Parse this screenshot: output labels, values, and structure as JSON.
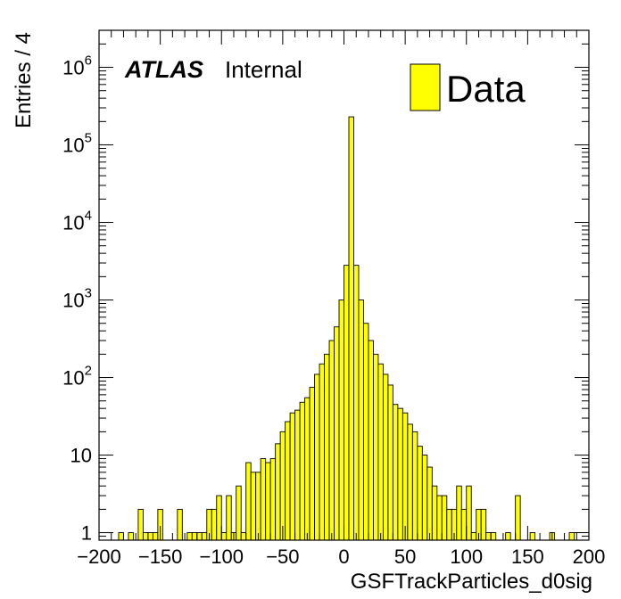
{
  "chart_data": {
    "type": "bar",
    "histogram": true,
    "xlabel": "GSFTrackParticles_d0sig",
    "ylabel": "Entries / 4",
    "xlim": [
      -200,
      200
    ],
    "ylim": [
      0.8,
      3000000
    ],
    "y_scale": "log",
    "grid": false,
    "bin_width": 4,
    "annotation": {
      "experiment": "ATLAS",
      "status": "Internal"
    },
    "legend": {
      "placement": "top-right",
      "entries": [
        {
          "label": "Data",
          "color": "#ffff00"
        }
      ]
    },
    "x_ticks": [
      -200,
      -150,
      -100,
      -50,
      0,
      50,
      100,
      150,
      200
    ],
    "x_tick_labels": [
      "−200",
      "−150",
      "−100",
      "−50",
      "0",
      "50",
      "100",
      "150",
      "200"
    ],
    "y_ticks": [
      1,
      10,
      100,
      1000,
      10000,
      100000,
      1000000
    ],
    "y_tick_labels": [
      {
        "base": "1",
        "exp": ""
      },
      {
        "base": "10",
        "exp": ""
      },
      {
        "base": "10",
        "exp": "2"
      },
      {
        "base": "10",
        "exp": "3"
      },
      {
        "base": "10",
        "exp": "4"
      },
      {
        "base": "10",
        "exp": "5"
      },
      {
        "base": "10",
        "exp": "6"
      }
    ],
    "series": [
      {
        "name": "Data",
        "color": "#ffff00",
        "bins": [
          [
            -184,
            1
          ],
          [
            -176,
            1
          ],
          [
            -168,
            2
          ],
          [
            -164,
            1
          ],
          [
            -160,
            1
          ],
          [
            -156,
            1
          ],
          [
            -152,
            2
          ],
          [
            -136,
            2
          ],
          [
            -128,
            1
          ],
          [
            -124,
            1
          ],
          [
            -120,
            1
          ],
          [
            -116,
            1
          ],
          [
            -112,
            2
          ],
          [
            -108,
            2
          ],
          [
            -104,
            3
          ],
          [
            -100,
            1
          ],
          [
            -96,
            3
          ],
          [
            -92,
            1
          ],
          [
            -88,
            4
          ],
          [
            -84,
            1
          ],
          [
            -80,
            8
          ],
          [
            -76,
            6
          ],
          [
            -72,
            6
          ],
          [
            -68,
            9
          ],
          [
            -64,
            8
          ],
          [
            -60,
            9
          ],
          [
            -56,
            14
          ],
          [
            -52,
            20
          ],
          [
            -48,
            27
          ],
          [
            -44,
            35
          ],
          [
            -40,
            38
          ],
          [
            -36,
            48
          ],
          [
            -32,
            55
          ],
          [
            -28,
            75
          ],
          [
            -24,
            110
          ],
          [
            -20,
            150
          ],
          [
            -16,
            200
          ],
          [
            -12,
            300
          ],
          [
            -8,
            450
          ],
          [
            -4,
            1000
          ],
          [
            0,
            2800
          ],
          [
            4,
            230000
          ],
          [
            8,
            2800
          ],
          [
            12,
            1000
          ],
          [
            16,
            500
          ],
          [
            20,
            300
          ],
          [
            24,
            200
          ],
          [
            28,
            150
          ],
          [
            32,
            110
          ],
          [
            36,
            80
          ],
          [
            40,
            45
          ],
          [
            44,
            40
          ],
          [
            48,
            35
          ],
          [
            52,
            25
          ],
          [
            56,
            20
          ],
          [
            60,
            13
          ],
          [
            64,
            10
          ],
          [
            68,
            7
          ],
          [
            72,
            4
          ],
          [
            76,
            3
          ],
          [
            80,
            3
          ],
          [
            84,
            2
          ],
          [
            88,
            2
          ],
          [
            92,
            4
          ],
          [
            96,
            2
          ],
          [
            100,
            4
          ],
          [
            104,
            1
          ],
          [
            108,
            2
          ],
          [
            112,
            2
          ],
          [
            116,
            1
          ],
          [
            120,
            1
          ],
          [
            132,
            1
          ],
          [
            140,
            3
          ],
          [
            152,
            1
          ],
          [
            168,
            1
          ],
          [
            184,
            1
          ]
        ]
      }
    ]
  }
}
